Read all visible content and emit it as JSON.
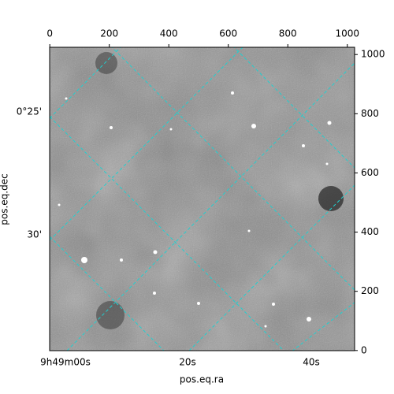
{
  "chart_data": {
    "type": "image",
    "xlabel": "pos.eq.ra",
    "ylabel": "pos.eq.dec",
    "xlim": [
      -0.5,
      1024.5
    ],
    "ylim": [
      -0.5,
      1024.5
    ],
    "xticks": [
      0,
      200,
      400,
      600,
      800,
      1000
    ],
    "yticks": [
      0,
      200,
      400,
      600,
      800,
      1000
    ],
    "ra_tick_labels": [
      "9h49m00s",
      "20s",
      "40s"
    ],
    "dec_tick_labels": [
      "0°25'",
      "30'"
    ],
    "grid_color": "#20d0d0"
  }
}
